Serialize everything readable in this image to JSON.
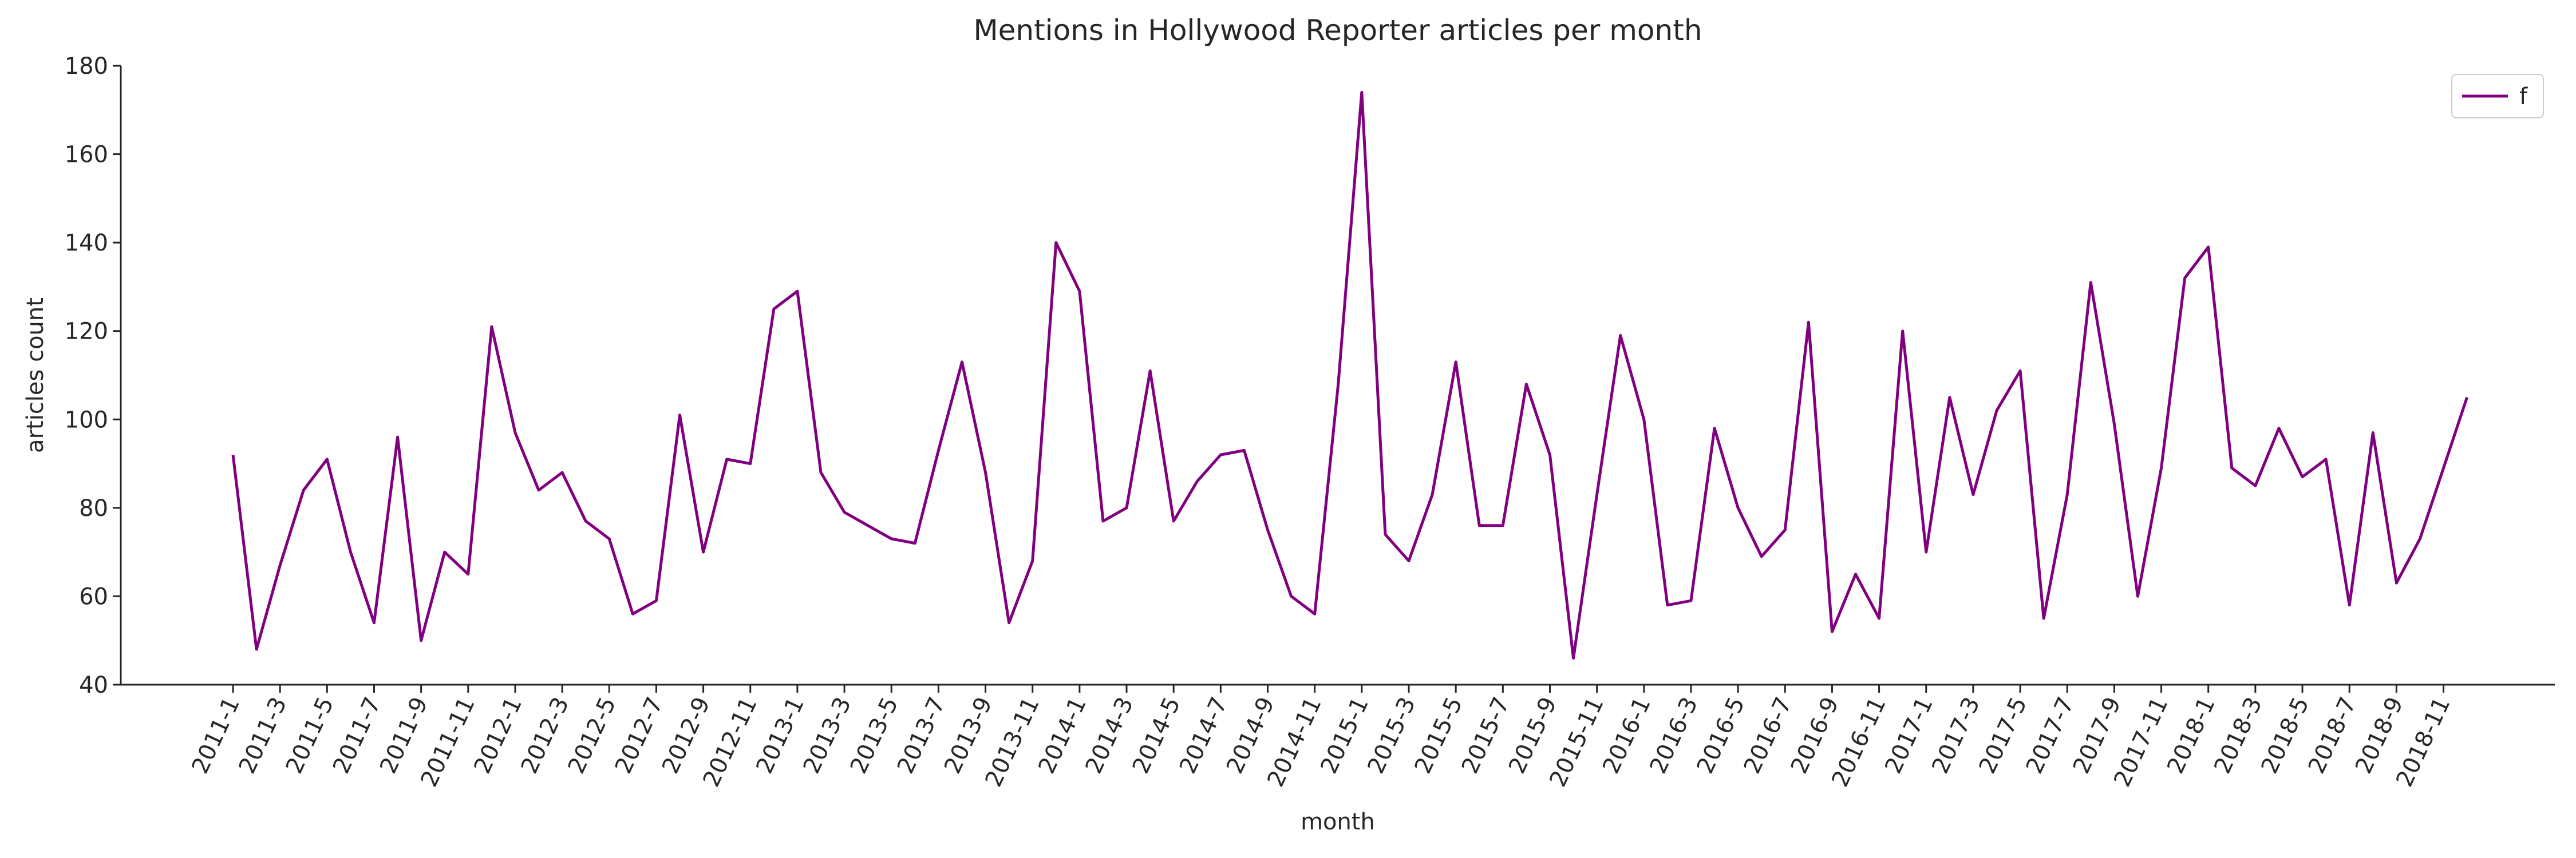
{
  "chart_data": {
    "type": "line",
    "title": "Mentions in Hollywood Reporter articles per month",
    "x_label": "month",
    "y_label": "articles count",
    "categories": [
      "2011-1",
      null,
      "2011-3",
      null,
      "2011-5",
      null,
      "2011-7",
      null,
      "2011-9",
      null,
      "2011-11",
      null,
      "2012-1",
      null,
      "2012-3",
      null,
      "2012-5",
      null,
      "2012-7",
      null,
      "2012-9",
      null,
      "2012-11",
      null,
      "2013-1",
      null,
      "2013-3",
      null,
      "2013-5",
      null,
      "2013-7",
      null,
      "2013-9",
      null,
      "2013-11",
      null,
      "2014-1",
      null,
      "2014-3",
      null,
      "2014-5",
      null,
      "2014-7",
      null,
      "2014-9",
      null,
      "2014-11",
      null,
      "2015-1",
      null,
      "2015-3",
      null,
      "2015-5",
      null,
      "2015-7",
      null,
      "2015-9",
      null,
      "2015-11",
      null,
      "2016-1",
      null,
      "2016-3",
      null,
      "2016-5",
      null,
      "2016-7",
      null,
      "2016-9",
      null,
      "2016-11",
      null,
      "2017-1",
      null,
      "2017-3",
      null,
      "2017-5",
      null,
      "2017-7",
      null,
      "2017-9",
      null,
      "2017-11",
      null,
      "2018-1",
      null,
      "2018-3",
      null,
      "2018-5",
      null,
      "2018-7",
      null,
      "2018-9",
      null,
      "2018-11",
      null
    ],
    "series": [
      {
        "name": "f",
        "color": "#800080",
        "values": [
          92,
          48,
          67,
          84,
          91,
          70,
          54,
          96,
          50,
          70,
          65,
          121,
          97,
          84,
          88,
          77,
          73,
          56,
          59,
          101,
          70,
          91,
          90,
          125,
          129,
          88,
          79,
          76,
          73,
          72,
          93,
          113,
          88,
          54,
          68,
          140,
          129,
          77,
          80,
          111,
          77,
          86,
          92,
          93,
          75,
          60,
          56,
          108,
          174,
          74,
          68,
          83,
          113,
          76,
          76,
          108,
          92,
          46,
          83,
          119,
          100,
          58,
          59,
          98,
          80,
          69,
          75,
          122,
          52,
          65,
          55,
          120,
          70,
          105,
          83,
          102,
          111,
          55,
          83,
          131,
          99,
          60,
          89,
          132,
          139,
          89,
          85,
          98,
          87,
          91,
          58,
          97,
          63,
          73,
          89,
          105
        ]
      }
    ],
    "ylim": [
      40,
      180
    ],
    "yticks": [
      40,
      60,
      80,
      100,
      120,
      140,
      160,
      180
    ],
    "legend": "upper right",
    "grid": false
  }
}
